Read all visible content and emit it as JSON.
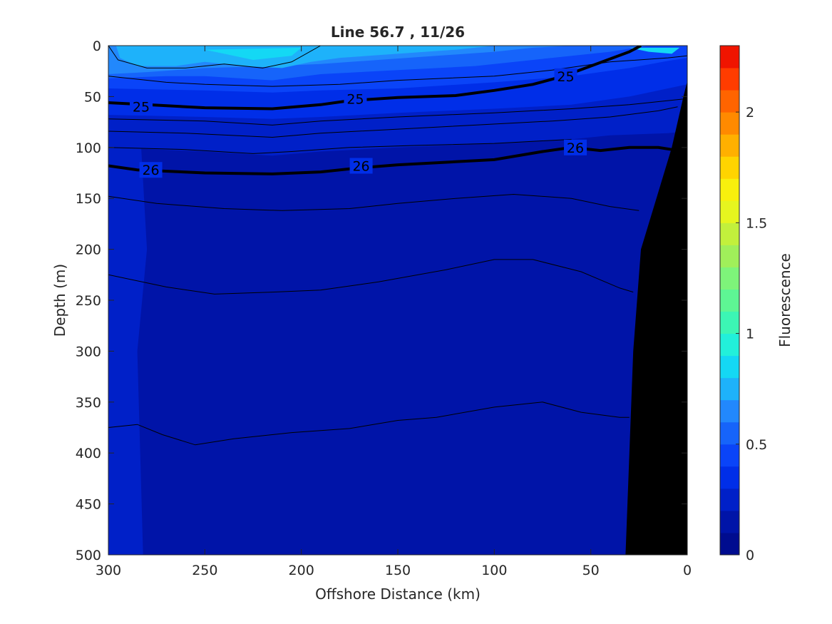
{
  "chart_data": {
    "type": "heatmap",
    "title": "Line 56.7 , 11/26",
    "xlabel": "Offshore Distance (km)",
    "ylabel": "Depth (m)",
    "x_axis": {
      "reversed": true,
      "lim": [
        0,
        300
      ],
      "ticks": [
        "300",
        "250",
        "200",
        "150",
        "100",
        "50",
        "0"
      ],
      "tick_values": [
        300,
        250,
        200,
        150,
        100,
        50,
        0
      ]
    },
    "y_axis": {
      "reversed": true,
      "lim": [
        0,
        500
      ],
      "ticks": [
        "0",
        "50",
        "100",
        "150",
        "200",
        "250",
        "300",
        "350",
        "400",
        "450",
        "500"
      ],
      "tick_values": [
        0,
        50,
        100,
        150,
        200,
        250,
        300,
        350,
        400,
        450,
        500
      ]
    },
    "colorbar": {
      "label": "Fluorescence",
      "lim": [
        0,
        2.3
      ],
      "ticks": [
        "0",
        "0.5",
        "1",
        "1.5",
        "2"
      ],
      "tick_values": [
        0,
        0.5,
        1,
        1.5,
        2
      ],
      "levels": [
        0,
        0.1,
        0.2,
        0.3,
        0.4,
        0.5,
        0.6,
        0.7,
        0.8,
        0.9,
        1.0,
        1.1,
        1.2,
        1.3,
        1.4,
        1.5,
        1.6,
        1.7,
        1.8,
        1.9,
        2.0,
        2.1,
        2.2,
        2.3
      ],
      "colors": [
        "#000c8f",
        "#0014a8",
        "#0020c8",
        "#002ee8",
        "#0a44f8",
        "#1664fa",
        "#2288fc",
        "#1eb2fa",
        "#14d8f4",
        "#22f0da",
        "#3cf6b4",
        "#5ef694",
        "#7ef47a",
        "#a0ef5a",
        "#c2f03c",
        "#e6f51f",
        "#f8f00d",
        "#ffd400",
        "#ffb000",
        "#ff8a00",
        "#ff6400",
        "#ff3c00",
        "#f01400",
        "#c00000",
        "#9c0000"
      ]
    },
    "contours": [
      {
        "level": 25,
        "label": "25",
        "bold": true,
        "points": [
          [
            300,
            56
          ],
          [
            280,
            58
          ],
          [
            250,
            61
          ],
          [
            215,
            62
          ],
          [
            190,
            58
          ],
          [
            175,
            54
          ],
          [
            150,
            51
          ],
          [
            120,
            49
          ],
          [
            100,
            44
          ],
          [
            80,
            38
          ],
          [
            70,
            33
          ],
          [
            60,
            27
          ],
          [
            50,
            20
          ],
          [
            30,
            6
          ],
          [
            24,
            0
          ]
        ]
      },
      {
        "level": 26,
        "label": "26",
        "bold": true,
        "points": [
          [
            300,
            118
          ],
          [
            285,
            122
          ],
          [
            250,
            125
          ],
          [
            215,
            126
          ],
          [
            190,
            124
          ],
          [
            170,
            120
          ],
          [
            150,
            117
          ],
          [
            120,
            114
          ],
          [
            100,
            112
          ],
          [
            75,
            104
          ],
          [
            60,
            100
          ],
          [
            45,
            103
          ],
          [
            30,
            100
          ],
          [
            15,
            100
          ],
          [
            8,
            102
          ]
        ]
      }
    ],
    "thin_isolines_depth_m": [
      [
        300,
        30
      ],
      [
        300,
        70
      ],
      [
        300,
        88
      ],
      [
        300,
        100
      ],
      [
        300,
        150
      ],
      [
        300,
        225
      ],
      [
        300,
        375
      ]
    ],
    "bathymetry_fill": "#000000"
  }
}
